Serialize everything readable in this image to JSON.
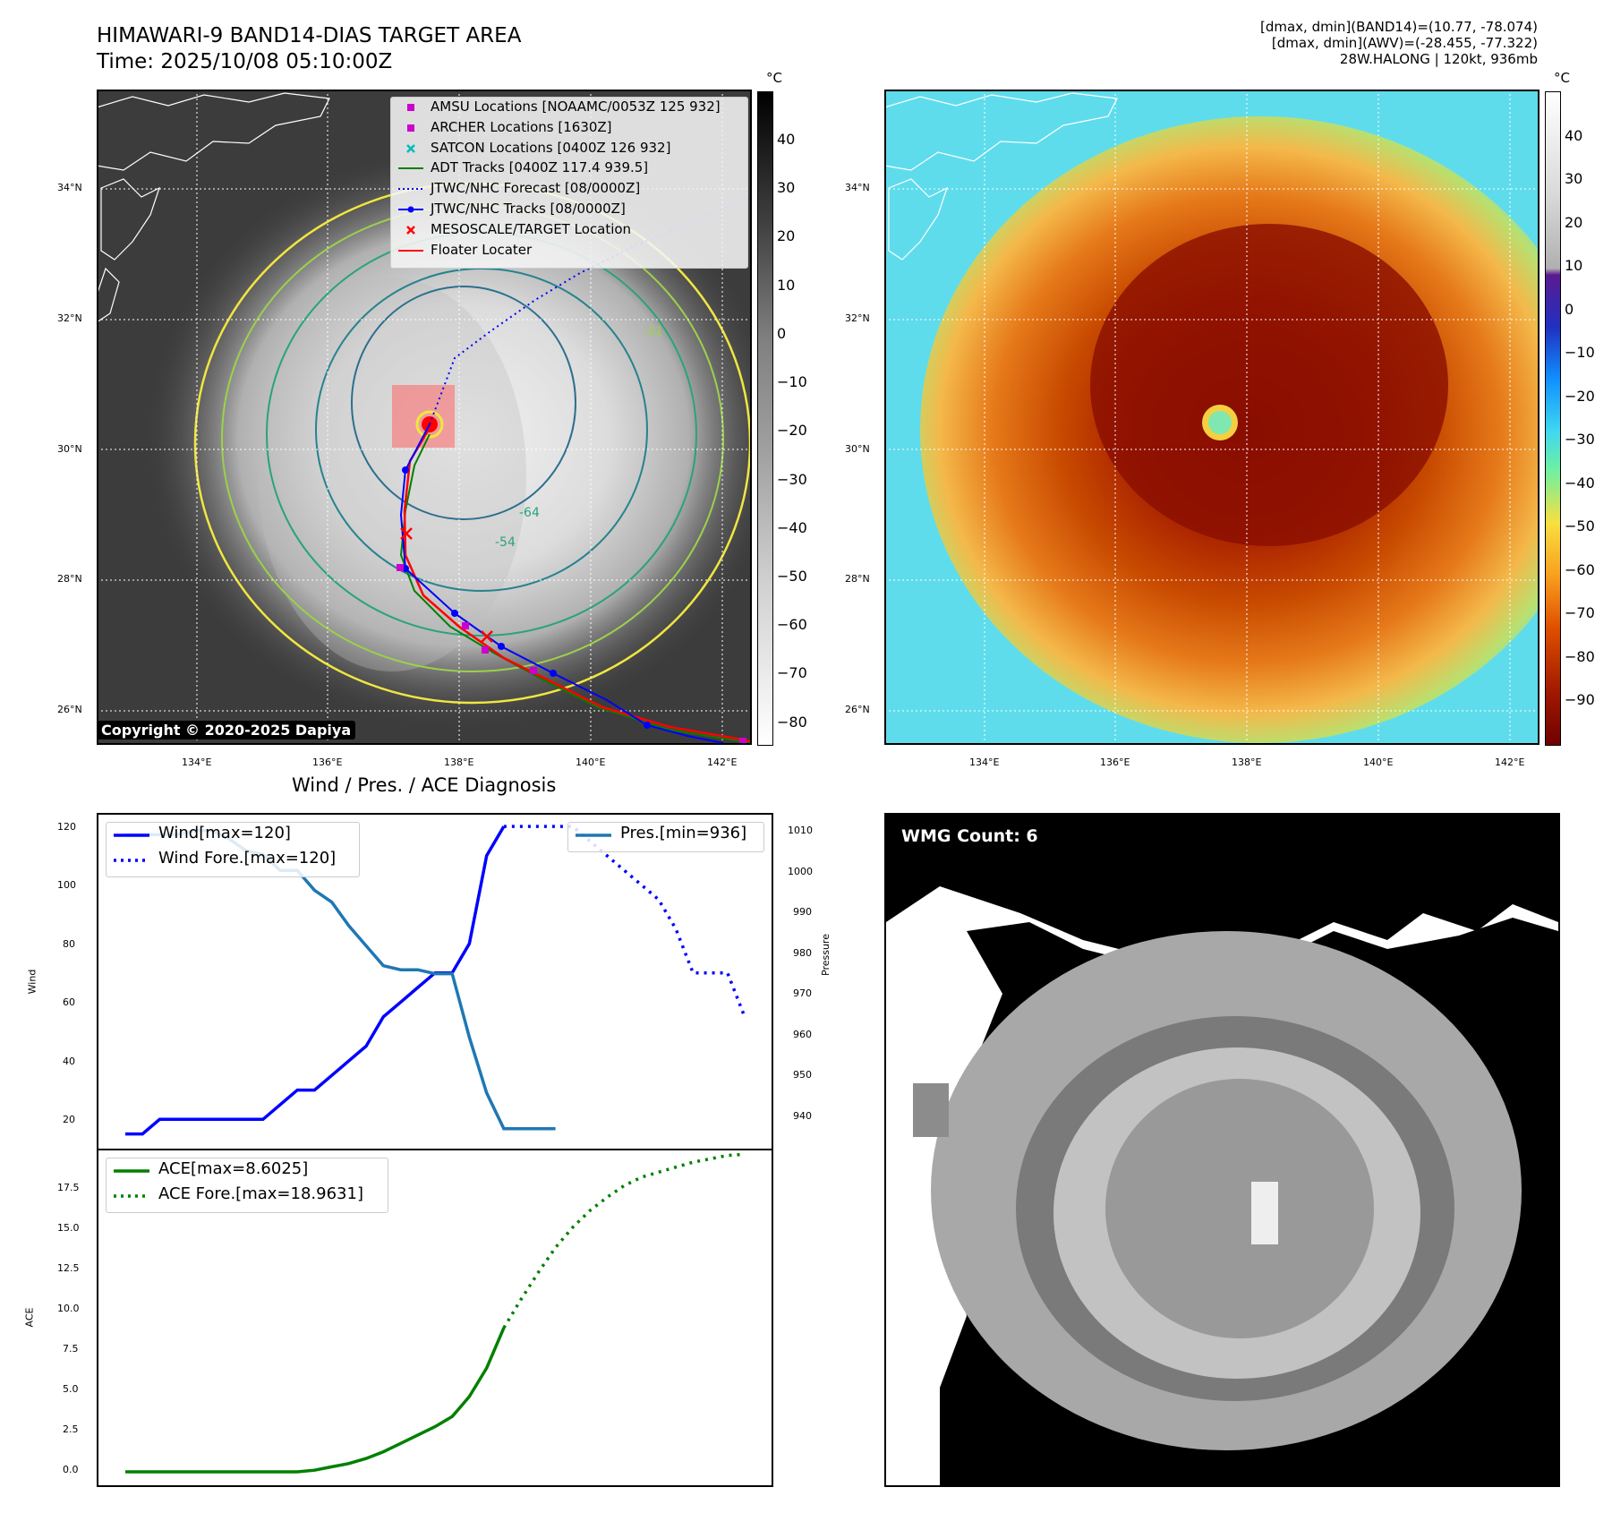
{
  "header": {
    "title_line1": "HIMAWARI-9 BAND14-DIAS TARGET AREA",
    "title_line2": "Time: 2025/10/08 05:10:00Z",
    "info_line1": "[dmax, dmin](BAND14)=(10.77, -78.074)",
    "info_line2": "[dmax, dmin](AWV)=(-28.455, -77.322)",
    "info_line3": "28W.HALONG | 120kt, 936mb"
  },
  "map": {
    "lat_ticks": [
      "34°N",
      "32°N",
      "30°N",
      "28°N",
      "26°N"
    ],
    "lon_ticks": [
      "134°E",
      "136°E",
      "138°E",
      "140°E",
      "142°E"
    ],
    "copyright": "Copyright © 2020-2025 Dapiya",
    "contour_labels": [
      "-64",
      "-54",
      "-31"
    ],
    "legend": [
      {
        "label": "AMSU Locations [NOAAMC/0053Z 125 932]",
        "symbol": "square",
        "color": "#cc00cc"
      },
      {
        "label": "ARCHER Locations [1630Z]",
        "symbol": "square",
        "color": "#cc00cc"
      },
      {
        "label": "SATCON Locations [0400Z 126 932]",
        "symbol": "x",
        "color": "#00bbbb"
      },
      {
        "label": "ADT Tracks [0400Z 117.4 939.5]",
        "symbol": "line",
        "color": "#008000"
      },
      {
        "label": "JTWC/NHC Forecast [08/0000Z]",
        "symbol": "dotted",
        "color": "#0000ff"
      },
      {
        "label": "JTWC/NHC Tracks [08/0000Z]",
        "symbol": "line-dot",
        "color": "#0000ff"
      },
      {
        "label": "MESOSCALE/TARGET Location",
        "symbol": "x",
        "color": "#ff0000"
      },
      {
        "label": "Floater Locater",
        "symbol": "line",
        "color": "#ff0000"
      }
    ]
  },
  "colorbar_gray": {
    "unit": "°C",
    "ticks": [
      "40",
      "30",
      "20",
      "10",
      "0",
      "−10",
      "−20",
      "−30",
      "−40",
      "−50",
      "−60",
      "−70",
      "−80"
    ]
  },
  "colorbar_color": {
    "unit": "°C",
    "ticks": [
      "40",
      "30",
      "20",
      "10",
      "0",
      "−10",
      "−20",
      "−30",
      "−40",
      "−50",
      "−60",
      "−70",
      "−80",
      "−90"
    ]
  },
  "diagnosis": {
    "title": "Wind / Pres. / ACE Diagnosis",
    "wind_ylabel": "Wind",
    "pressure_ylabel": "Pressure",
    "ace_ylabel": "ACE",
    "wind_ticks": [
      "120",
      "100",
      "80",
      "60",
      "40",
      "20"
    ],
    "pressure_ticks": [
      "1010",
      "1000",
      "990",
      "980",
      "970",
      "960",
      "950",
      "940"
    ],
    "ace_ticks": [
      "17.5",
      "15.0",
      "12.5",
      "10.0",
      "7.5",
      "5.0",
      "2.5",
      "0.0"
    ],
    "legend_wind": "Wind[max=120]",
    "legend_wind_fore": "Wind Fore.[max=120]",
    "legend_pres": "Pres.[min=936]",
    "legend_ace": "ACE[max=8.6025]",
    "legend_ace_fore": "ACE Fore.[max=18.9631]"
  },
  "wmg": {
    "label": "WMG Count: 6"
  },
  "chart_data": [
    {
      "type": "line",
      "title": "Wind / Pres. / ACE Diagnosis (wind & pressure)",
      "ylabel": "Wind",
      "ylim": [
        10,
        124
      ],
      "y2label": "Pressure",
      "y2lim": [
        931,
        1015
      ],
      "x": [
        0,
        1,
        2,
        3,
        4,
        5,
        6,
        7,
        8,
        9,
        10,
        11,
        12,
        13,
        14,
        15,
        16,
        17,
        18,
        19,
        20,
        21,
        22,
        23,
        24,
        25,
        26,
        27,
        28,
        29,
        30,
        31,
        32,
        33,
        34,
        35,
        36
      ],
      "series": [
        {
          "name": "Wind[max=120]",
          "axis": "left",
          "style": "solid",
          "color": "#0000ff",
          "x": [
            0,
            1,
            2,
            3,
            4,
            5,
            6,
            7,
            8,
            9,
            10,
            11,
            12,
            13,
            14,
            15,
            16,
            17,
            18,
            19,
            20,
            21,
            22
          ],
          "values": [
            15,
            15,
            20,
            20,
            20,
            20,
            20,
            20,
            20,
            25,
            30,
            30,
            35,
            40,
            45,
            55,
            60,
            65,
            70,
            70,
            80,
            110,
            120
          ]
        },
        {
          "name": "Wind Fore.[max=120]",
          "axis": "left",
          "style": "dotted",
          "color": "#0000ff",
          "x": [
            22,
            23,
            24,
            25,
            26,
            27,
            28,
            29,
            30,
            31,
            32,
            33,
            34,
            35,
            36
          ],
          "values": [
            120,
            120,
            120,
            120,
            120,
            115,
            110,
            105,
            100,
            95,
            85,
            70,
            70,
            70,
            55
          ]
        },
        {
          "name": "Pres.[min=936]",
          "axis": "right",
          "style": "solid",
          "color": "#1f77b4",
          "x": [
            0,
            1,
            2,
            3,
            4,
            5,
            6,
            7,
            8,
            9,
            10,
            11,
            12,
            13,
            14,
            15,
            16,
            17,
            18,
            19,
            20,
            21,
            22,
            23,
            24,
            25
          ],
          "values": [
            1010,
            1010,
            1010,
            1010,
            1011,
            1011,
            1009,
            1006,
            1005,
            1001,
            1001,
            996,
            993,
            987,
            982,
            977,
            976,
            976,
            975,
            975,
            959,
            945,
            936,
            936,
            936,
            936
          ]
        }
      ]
    },
    {
      "type": "line",
      "title": "ACE",
      "ylabel": "ACE",
      "ylim": [
        -0.8,
        19.2
      ],
      "series": [
        {
          "name": "ACE[max=8.6025]",
          "style": "solid",
          "color": "#008000",
          "x": [
            0,
            2,
            4,
            6,
            8,
            10,
            11,
            12,
            13,
            14,
            15,
            16,
            17,
            18,
            19,
            20,
            21,
            22
          ],
          "values": [
            0,
            0,
            0,
            0,
            0,
            0,
            0.1,
            0.3,
            0.5,
            0.8,
            1.2,
            1.7,
            2.2,
            2.7,
            3.3,
            4.5,
            6.2,
            8.6
          ]
        },
        {
          "name": "ACE Fore.[max=18.9631]",
          "style": "dotted",
          "color": "#008000",
          "x": [
            22,
            23,
            24,
            25,
            26,
            27,
            28,
            29,
            30,
            31,
            32,
            33,
            34,
            35,
            36
          ],
          "values": [
            8.6,
            10.3,
            11.9,
            13.4,
            14.6,
            15.6,
            16.4,
            17.1,
            17.6,
            17.9,
            18.2,
            18.5,
            18.7,
            18.9,
            18.9631
          ]
        }
      ]
    }
  ]
}
